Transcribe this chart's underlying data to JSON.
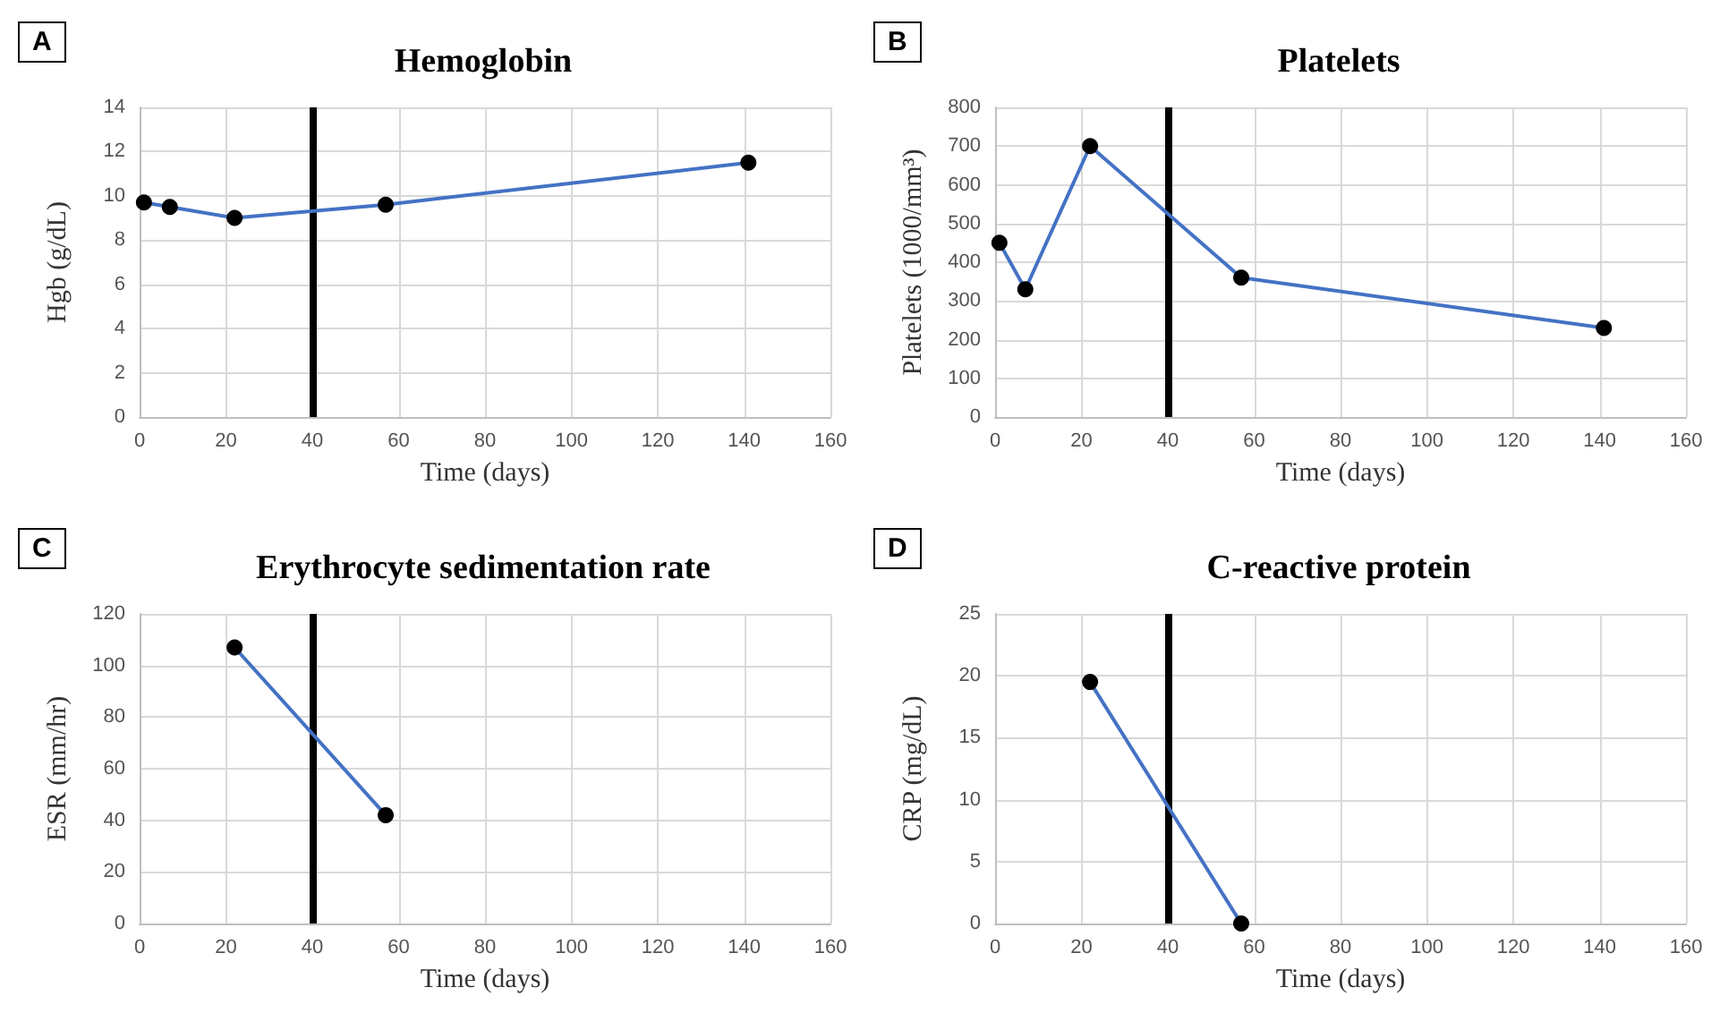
{
  "chart_data": [
    {
      "type": "line",
      "title": "Hemoglobin",
      "xlabel": "Time (days)",
      "ylabel": "Hgb (g/dL)",
      "annotations": [
        "A"
      ],
      "x": [
        1,
        7,
        22,
        57,
        141
      ],
      "series": [
        {
          "color": "#4472c4",
          "values": [
            9.7,
            9.5,
            9.0,
            9.6,
            11.5
          ]
        }
      ],
      "xlim": [
        0,
        160
      ],
      "xticks": [
        0,
        20,
        40,
        60,
        80,
        100,
        120,
        140,
        160
      ],
      "ylim": [
        0,
        14
      ],
      "yticks": [
        0,
        2,
        4,
        6,
        8,
        10,
        12,
        14
      ],
      "ref_lines": [
        {
          "axis": "x",
          "value": 40,
          "color": "#000000"
        }
      ],
      "grid": true,
      "marker": "circle"
    },
    {
      "type": "line",
      "title": "Platelets",
      "xlabel": "Time (days)",
      "ylabel": "Platelets (1000/mm³)",
      "annotations": [
        "B"
      ],
      "x": [
        1,
        7,
        22,
        57,
        141
      ],
      "series": [
        {
          "color": "#4472c4",
          "values": [
            450,
            330,
            700,
            360,
            230
          ]
        }
      ],
      "xlim": [
        0,
        160
      ],
      "xticks": [
        0,
        20,
        40,
        60,
        80,
        100,
        120,
        140,
        160
      ],
      "ylim": [
        0,
        800
      ],
      "yticks": [
        0,
        100,
        200,
        300,
        400,
        500,
        600,
        700,
        800
      ],
      "ref_lines": [
        {
          "axis": "x",
          "value": 40,
          "color": "#000000"
        }
      ],
      "grid": true,
      "marker": "circle"
    },
    {
      "type": "line",
      "title": "Erythrocyte sedimentation rate",
      "xlabel": "Time (days)",
      "ylabel": "ESR (mm/hr)",
      "annotations": [
        "C"
      ],
      "x": [
        22,
        57
      ],
      "series": [
        {
          "color": "#4472c4",
          "values": [
            107,
            42
          ]
        }
      ],
      "xlim": [
        0,
        160
      ],
      "xticks": [
        0,
        20,
        40,
        60,
        80,
        100,
        120,
        140,
        160
      ],
      "ylim": [
        0,
        120
      ],
      "yticks": [
        0,
        20,
        40,
        60,
        80,
        100,
        120
      ],
      "ref_lines": [
        {
          "axis": "x",
          "value": 40,
          "color": "#000000"
        }
      ],
      "grid": true,
      "marker": "circle"
    },
    {
      "type": "line",
      "title": "C-reactive protein",
      "xlabel": "Time (days)",
      "ylabel": "CRP (mg/dL)",
      "annotations": [
        "D"
      ],
      "x": [
        22,
        57
      ],
      "series": [
        {
          "color": "#4472c4",
          "values": [
            19.5,
            0
          ]
        }
      ],
      "xlim": [
        0,
        160
      ],
      "xticks": [
        0,
        20,
        40,
        60,
        80,
        100,
        120,
        140,
        160
      ],
      "ylim": [
        0,
        25
      ],
      "yticks": [
        0,
        5,
        10,
        15,
        20,
        25
      ],
      "ref_lines": [
        {
          "axis": "x",
          "value": 40,
          "color": "#000000"
        }
      ],
      "grid": true,
      "marker": "circle"
    }
  ]
}
